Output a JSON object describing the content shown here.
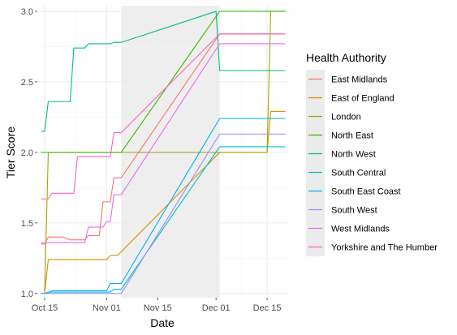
{
  "chart_data": {
    "type": "line",
    "title": "",
    "xlabel": "Date",
    "ylabel": "Tier Score",
    "x_ticks": [
      "Oct 15",
      "Nov 01",
      "Nov 15",
      "Dec 01",
      "Dec 15"
    ],
    "x_tick_values": [
      "2020-10-15",
      "2020-11-01",
      "2020-11-15",
      "2020-12-01",
      "2020-12-15"
    ],
    "y_ticks": [
      "1.0",
      "1.5",
      "2.0",
      "2.5",
      "3.0"
    ],
    "ylim": [
      0.97,
      3.04
    ],
    "xlim": [
      "2020-10-13",
      "2020-12-21"
    ],
    "grid": true,
    "shaded_region": {
      "from": "2020-11-05",
      "to": "2020-12-02",
      "color": "#ebebeb"
    },
    "legend": {
      "title": "Health Authority",
      "position": "right"
    },
    "series": [
      {
        "name": "East Midlands",
        "color": "#F8766D",
        "points": [
          [
            "2020-10-14",
            1.35
          ],
          [
            "2020-10-15",
            1.35
          ],
          [
            "2020-10-16",
            1.4
          ],
          [
            "2020-10-20",
            1.4
          ],
          [
            "2020-10-22",
            1.38
          ],
          [
            "2020-10-26",
            1.38
          ],
          [
            "2020-10-27",
            1.41
          ],
          [
            "2020-10-30",
            1.41
          ],
          [
            "2020-10-31",
            1.65
          ],
          [
            "2020-11-02",
            1.65
          ],
          [
            "2020-11-03",
            1.82
          ],
          [
            "2020-11-05",
            1.82
          ],
          [
            "2020-12-02",
            2.84
          ],
          [
            "2020-12-20",
            2.84
          ]
        ]
      },
      {
        "name": "East of England",
        "color": "#D89000",
        "points": [
          [
            "2020-10-14",
            1.0
          ],
          [
            "2020-10-15",
            1.0
          ],
          [
            "2020-10-16",
            1.24
          ],
          [
            "2020-11-01",
            1.24
          ],
          [
            "2020-11-02",
            1.27
          ],
          [
            "2020-11-04",
            1.27
          ],
          [
            "2020-12-02",
            2.0
          ],
          [
            "2020-12-15",
            2.0
          ],
          [
            "2020-12-16",
            2.29
          ],
          [
            "2020-12-20",
            2.29
          ]
        ]
      },
      {
        "name": "London",
        "color": "#A3A500",
        "points": [
          [
            "2020-10-14",
            1.0
          ],
          [
            "2020-10-15",
            1.0
          ],
          [
            "2020-10-16",
            2.0
          ],
          [
            "2020-12-15",
            2.0
          ],
          [
            "2020-12-16",
            3.0
          ],
          [
            "2020-12-20",
            3.0
          ]
        ]
      },
      {
        "name": "North East",
        "color": "#39B600",
        "points": [
          [
            "2020-10-14",
            2.0
          ],
          [
            "2020-11-05",
            2.0
          ],
          [
            "2020-12-02",
            3.0
          ],
          [
            "2020-12-20",
            3.0
          ]
        ]
      },
      {
        "name": "North West",
        "color": "#00BF7D",
        "points": [
          [
            "2020-10-14",
            2.15
          ],
          [
            "2020-10-15",
            2.15
          ],
          [
            "2020-10-16",
            2.36
          ],
          [
            "2020-10-22",
            2.36
          ],
          [
            "2020-10-23",
            2.74
          ],
          [
            "2020-10-26",
            2.74
          ],
          [
            "2020-10-27",
            2.77
          ],
          [
            "2020-11-02",
            2.77
          ],
          [
            "2020-11-03",
            2.78
          ],
          [
            "2020-11-05",
            2.78
          ],
          [
            "2020-12-01",
            3.0
          ],
          [
            "2020-12-02",
            2.58
          ],
          [
            "2020-12-20",
            2.58
          ]
        ]
      },
      {
        "name": "South Central",
        "color": "#00BFC4",
        "points": [
          [
            "2020-10-14",
            1.0
          ],
          [
            "2020-10-15",
            1.0
          ],
          [
            "2020-10-16",
            1.01
          ],
          [
            "2020-11-02",
            1.01
          ],
          [
            "2020-11-03",
            1.03
          ],
          [
            "2020-11-05",
            1.03
          ],
          [
            "2020-12-02",
            2.04
          ],
          [
            "2020-12-20",
            2.04
          ]
        ]
      },
      {
        "name": "South East Coast",
        "color": "#00B0F6",
        "points": [
          [
            "2020-10-14",
            1.0
          ],
          [
            "2020-10-16",
            1.0
          ],
          [
            "2020-10-17",
            1.02
          ],
          [
            "2020-11-01",
            1.02
          ],
          [
            "2020-11-02",
            1.07
          ],
          [
            "2020-11-05",
            1.07
          ],
          [
            "2020-12-02",
            2.24
          ],
          [
            "2020-12-20",
            2.24
          ]
        ]
      },
      {
        "name": "South West",
        "color": "#9590FF",
        "points": [
          [
            "2020-10-14",
            1.0
          ],
          [
            "2020-11-05",
            1.0
          ],
          [
            "2020-12-02",
            2.13
          ],
          [
            "2020-12-20",
            2.13
          ]
        ]
      },
      {
        "name": "West Midlands",
        "color": "#E76BF3",
        "points": [
          [
            "2020-10-14",
            1.36
          ],
          [
            "2020-10-26",
            1.36
          ],
          [
            "2020-10-27",
            1.47
          ],
          [
            "2020-10-31",
            1.47
          ],
          [
            "2020-11-01",
            1.51
          ],
          [
            "2020-11-02",
            1.51
          ],
          [
            "2020-11-03",
            1.7
          ],
          [
            "2020-11-05",
            1.7
          ],
          [
            "2020-12-02",
            2.77
          ],
          [
            "2020-12-20",
            2.77
          ]
        ]
      },
      {
        "name": "Yorkshire and The Humber",
        "color": "#FF62BC",
        "points": [
          [
            "2020-10-14",
            1.67
          ],
          [
            "2020-10-16",
            1.67
          ],
          [
            "2020-10-17",
            1.71
          ],
          [
            "2020-10-23",
            1.71
          ],
          [
            "2020-10-24",
            1.97
          ],
          [
            "2020-11-02",
            1.97
          ],
          [
            "2020-11-03",
            2.14
          ],
          [
            "2020-11-05",
            2.14
          ],
          [
            "2020-12-02",
            2.84
          ],
          [
            "2020-12-20",
            2.84
          ]
        ]
      }
    ]
  }
}
